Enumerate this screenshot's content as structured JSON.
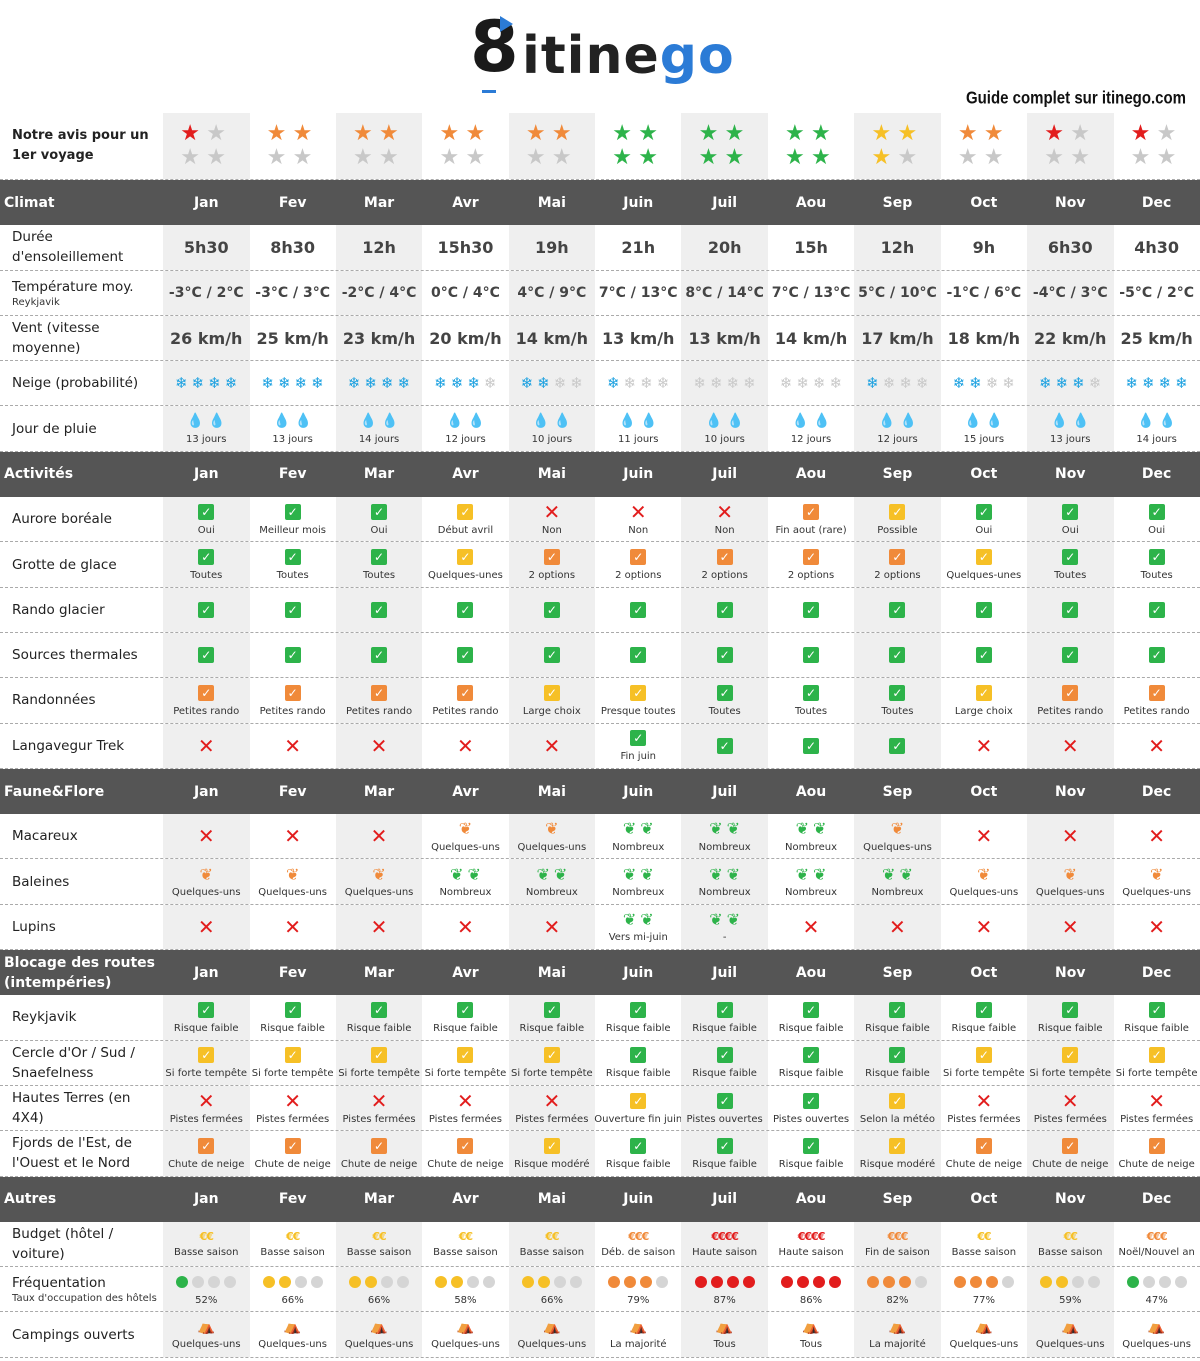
{
  "logo": {
    "prefix": "8",
    "text_a": "itine",
    "text_b": "go"
  },
  "guide": "Guide complet sur itinego.com",
  "months": [
    "Jan",
    "Fev",
    "Mar",
    "Avr",
    "Mai",
    "Juin",
    "Juil",
    "Aou",
    "Sep",
    "Oct",
    "Nov",
    "Dec"
  ],
  "colors": {
    "header": "#555555",
    "alt": "#efefef",
    "red": "#e21d1d",
    "orange": "#f08a3a",
    "yellow": "#f6c026",
    "green": "#2db34a",
    "grey": "#c8c8c8",
    "blue": "#1e8fd8"
  },
  "rating": {
    "label": "Notre avis pour un 1er voyage",
    "color": [
      "red",
      "orange",
      "orange",
      "orange",
      "orange",
      "green",
      "green",
      "green",
      "yellow",
      "orange",
      "red",
      "red"
    ],
    "stars": [
      1,
      2,
      2,
      2,
      2,
      4,
      4,
      4,
      3,
      2,
      1,
      1
    ]
  },
  "sections": [
    {
      "title": "Climat",
      "rows": [
        {
          "label": "Durée d'ensoleillement",
          "kind": "big",
          "cells": [
            "5h30",
            "8h30",
            "12h",
            "15h30",
            "19h",
            "21h",
            "20h",
            "15h",
            "12h",
            "9h",
            "6h30",
            "4h30"
          ]
        },
        {
          "label": "Température moy.",
          "sub": "Reykjavik",
          "kind": "temp",
          "cells": [
            "-3°C / 2°C",
            "-3°C / 3°C",
            "-2°C / 4°C",
            "0°C / 4°C",
            "4°C / 9°C",
            "7°C / 13°C",
            "8°C / 14°C",
            "7°C / 13°C",
            "5°C / 10°C",
            "-1°C / 6°C",
            "-4°C / 3°C",
            "-5°C / 2°C"
          ]
        },
        {
          "label": "Vent (vitesse moyenne)",
          "kind": "big",
          "cells": [
            "26 km/h",
            "25 km/h",
            "23 km/h",
            "20 km/h",
            "14 km/h",
            "13 km/h",
            "13 km/h",
            "14 km/h",
            "17 km/h",
            "18 km/h",
            "22 km/h",
            "25 km/h"
          ]
        },
        {
          "label": "Neige (probabilité)",
          "kind": "snow",
          "cells": [
            4,
            4,
            4,
            3,
            2,
            1,
            0,
            0,
            1,
            2,
            3,
            4
          ]
        },
        {
          "label": "Jour de pluie",
          "kind": "rain",
          "cells": [
            "13 jours",
            "13 jours",
            "14 jours",
            "12 jours",
            "10 jours",
            "11 jours",
            "10 jours",
            "12 jours",
            "12 jours",
            "15 jours",
            "13 jours",
            "14 jours"
          ]
        }
      ]
    },
    {
      "title": "Activités",
      "rows": [
        {
          "label": "Aurore boréale",
          "kind": "status",
          "cells": [
            [
              "g",
              "Oui"
            ],
            [
              "g",
              "Meilleur mois"
            ],
            [
              "g",
              "Oui"
            ],
            [
              "y",
              "Début avril"
            ],
            [
              "x",
              "Non"
            ],
            [
              "x",
              "Non"
            ],
            [
              "x",
              "Non"
            ],
            [
              "o",
              "Fin aout (rare)"
            ],
            [
              "y",
              "Possible"
            ],
            [
              "g",
              "Oui"
            ],
            [
              "g",
              "Oui"
            ],
            [
              "g",
              "Oui"
            ]
          ]
        },
        {
          "label": "Grotte de glace",
          "kind": "status",
          "cells": [
            [
              "g",
              "Toutes"
            ],
            [
              "g",
              "Toutes"
            ],
            [
              "g",
              "Toutes"
            ],
            [
              "y",
              "Quelques-unes"
            ],
            [
              "o",
              "2 options"
            ],
            [
              "o",
              "2 options"
            ],
            [
              "o",
              "2 options"
            ],
            [
              "o",
              "2 options"
            ],
            [
              "o",
              "2 options"
            ],
            [
              "y",
              "Quelques-unes"
            ],
            [
              "g",
              "Toutes"
            ],
            [
              "g",
              "Toutes"
            ]
          ]
        },
        {
          "label": "Rando glacier",
          "kind": "status",
          "cells": [
            [
              "g",
              ""
            ],
            [
              "g",
              ""
            ],
            [
              "g",
              ""
            ],
            [
              "g",
              ""
            ],
            [
              "g",
              ""
            ],
            [
              "g",
              ""
            ],
            [
              "g",
              ""
            ],
            [
              "g",
              ""
            ],
            [
              "g",
              ""
            ],
            [
              "g",
              ""
            ],
            [
              "g",
              ""
            ],
            [
              "g",
              ""
            ]
          ]
        },
        {
          "label": "Sources thermales",
          "kind": "status",
          "cells": [
            [
              "g",
              ""
            ],
            [
              "g",
              ""
            ],
            [
              "g",
              ""
            ],
            [
              "g",
              ""
            ],
            [
              "g",
              ""
            ],
            [
              "g",
              ""
            ],
            [
              "g",
              ""
            ],
            [
              "g",
              ""
            ],
            [
              "g",
              ""
            ],
            [
              "g",
              ""
            ],
            [
              "g",
              ""
            ],
            [
              "g",
              ""
            ]
          ]
        },
        {
          "label": "Randonnées",
          "kind": "status",
          "cells": [
            [
              "o",
              "Petites rando"
            ],
            [
              "o",
              "Petites rando"
            ],
            [
              "o",
              "Petites rando"
            ],
            [
              "o",
              "Petites rando"
            ],
            [
              "y",
              "Large choix"
            ],
            [
              "y",
              "Presque toutes"
            ],
            [
              "g",
              "Toutes"
            ],
            [
              "g",
              "Toutes"
            ],
            [
              "g",
              "Toutes"
            ],
            [
              "y",
              "Large choix"
            ],
            [
              "o",
              "Petites rando"
            ],
            [
              "o",
              "Petites rando"
            ]
          ]
        },
        {
          "label": "Langavegur Trek",
          "kind": "status",
          "cells": [
            [
              "x",
              ""
            ],
            [
              "x",
              ""
            ],
            [
              "x",
              ""
            ],
            [
              "x",
              ""
            ],
            [
              "x",
              ""
            ],
            [
              "g",
              "Fin juin"
            ],
            [
              "g",
              ""
            ],
            [
              "g",
              ""
            ],
            [
              "g",
              ""
            ],
            [
              "x",
              ""
            ],
            [
              "x",
              ""
            ],
            [
              "x",
              ""
            ]
          ]
        }
      ]
    },
    {
      "title": "Faune&Flore",
      "rows": [
        {
          "label": "Macareux",
          "kind": "fauna",
          "cells": [
            [
              "x",
              ""
            ],
            [
              "x",
              ""
            ],
            [
              "x",
              ""
            ],
            [
              "o1",
              "Quelques-uns"
            ],
            [
              "o1",
              "Quelques-uns"
            ],
            [
              "g2",
              "Nombreux"
            ],
            [
              "g2",
              "Nombreux"
            ],
            [
              "g2",
              "Nombreux"
            ],
            [
              "o1",
              "Quelques-uns"
            ],
            [
              "x",
              ""
            ],
            [
              "x",
              ""
            ],
            [
              "x",
              ""
            ]
          ]
        },
        {
          "label": "Baleines",
          "kind": "fauna",
          "cells": [
            [
              "o1",
              "Quelques-uns"
            ],
            [
              "o1",
              "Quelques-uns"
            ],
            [
              "o1",
              "Quelques-uns"
            ],
            [
              "g2",
              "Nombreux"
            ],
            [
              "g2",
              "Nombreux"
            ],
            [
              "g2",
              "Nombreux"
            ],
            [
              "g2",
              "Nombreux"
            ],
            [
              "g2",
              "Nombreux"
            ],
            [
              "g2",
              "Nombreux"
            ],
            [
              "o1",
              "Quelques-uns"
            ],
            [
              "o1",
              "Quelques-uns"
            ],
            [
              "o1",
              "Quelques-uns"
            ]
          ]
        },
        {
          "label": "Lupins",
          "kind": "fauna",
          "cells": [
            [
              "x",
              ""
            ],
            [
              "x",
              ""
            ],
            [
              "x",
              ""
            ],
            [
              "x",
              ""
            ],
            [
              "x",
              ""
            ],
            [
              "g2",
              "Vers mi-juin"
            ],
            [
              "g2",
              "-"
            ],
            [
              "x",
              ""
            ],
            [
              "x",
              ""
            ],
            [
              "x",
              ""
            ],
            [
              "x",
              ""
            ],
            [
              "x",
              ""
            ]
          ]
        }
      ]
    },
    {
      "title": "Blocage des routes (intempéries)",
      "rows": [
        {
          "label": "Reykjavik",
          "kind": "status",
          "cells": [
            [
              "g",
              "Risque faible"
            ],
            [
              "g",
              "Risque faible"
            ],
            [
              "g",
              "Risque faible"
            ],
            [
              "g",
              "Risque faible"
            ],
            [
              "g",
              "Risque faible"
            ],
            [
              "g",
              "Risque faible"
            ],
            [
              "g",
              "Risque faible"
            ],
            [
              "g",
              "Risque faible"
            ],
            [
              "g",
              "Risque faible"
            ],
            [
              "g",
              "Risque faible"
            ],
            [
              "g",
              "Risque faible"
            ],
            [
              "g",
              "Risque faible"
            ]
          ]
        },
        {
          "label": "Cercle d'Or / Sud / Snaefelness",
          "kind": "status",
          "cells": [
            [
              "y",
              "Si forte tempête"
            ],
            [
              "y",
              "Si forte tempête"
            ],
            [
              "y",
              "Si forte tempête"
            ],
            [
              "y",
              "Si forte tempête"
            ],
            [
              "y",
              "Si forte tempête"
            ],
            [
              "g",
              "Risque faible"
            ],
            [
              "g",
              "Risque faible"
            ],
            [
              "g",
              "Risque faible"
            ],
            [
              "g",
              "Risque faible"
            ],
            [
              "y",
              "Si forte tempête"
            ],
            [
              "y",
              "Si forte tempête"
            ],
            [
              "y",
              "Si forte tempête"
            ]
          ]
        },
        {
          "label": "Hautes Terres (en 4X4)",
          "kind": "status",
          "cells": [
            [
              "x",
              "Pistes fermées"
            ],
            [
              "x",
              "Pistes fermées"
            ],
            [
              "x",
              "Pistes fermées"
            ],
            [
              "x",
              "Pistes fermées"
            ],
            [
              "x",
              "Pistes fermées"
            ],
            [
              "y",
              "Ouverture fin juin"
            ],
            [
              "g",
              "Pistes ouvertes"
            ],
            [
              "g",
              "Pistes ouvertes"
            ],
            [
              "y",
              "Selon la météo"
            ],
            [
              "x",
              "Pistes fermées"
            ],
            [
              "x",
              "Pistes fermées"
            ],
            [
              "x",
              "Pistes fermées"
            ]
          ]
        },
        {
          "label": "Fjords de l'Est, de l'Ouest et le Nord",
          "kind": "status",
          "cells": [
            [
              "o",
              "Chute de neige"
            ],
            [
              "o",
              "Chute de neige"
            ],
            [
              "o",
              "Chute de neige"
            ],
            [
              "o",
              "Chute de neige"
            ],
            [
              "y",
              "Risque modéré"
            ],
            [
              "g",
              "Risque faible"
            ],
            [
              "g",
              "Risque faible"
            ],
            [
              "g",
              "Risque faible"
            ],
            [
              "y",
              "Risque modéré"
            ],
            [
              "o",
              "Chute de neige"
            ],
            [
              "o",
              "Chute de neige"
            ],
            [
              "o",
              "Chute de neige"
            ]
          ]
        }
      ]
    },
    {
      "title": "Autres",
      "rows": [
        {
          "label": "Budget (hôtel / voiture)",
          "kind": "budget",
          "cells": [
            [
              "y",
              "€€",
              "Basse saison"
            ],
            [
              "y",
              "€€",
              "Basse saison"
            ],
            [
              "y",
              "€€",
              "Basse saison"
            ],
            [
              "y",
              "€€",
              "Basse saison"
            ],
            [
              "y",
              "€€",
              "Basse saison"
            ],
            [
              "o",
              "€€€",
              "Déb. de saison"
            ],
            [
              "r",
              "€€€€",
              "Haute saison"
            ],
            [
              "r",
              "€€€€",
              "Haute saison"
            ],
            [
              "o",
              "€€€",
              "Fin de saison"
            ],
            [
              "y",
              "€€",
              "Basse saison"
            ],
            [
              "y",
              "€€",
              "Basse saison"
            ],
            [
              "o",
              "€€€",
              "Noël/Nouvel an"
            ]
          ]
        },
        {
          "label": "Fréquentation",
          "sub": "Taux d'occupation des hôtels",
          "kind": "freq",
          "cells": [
            [
              "g",
              1,
              "52%"
            ],
            [
              "y",
              2,
              "66%"
            ],
            [
              "y",
              2,
              "66%"
            ],
            [
              "y",
              2,
              "58%"
            ],
            [
              "y",
              2,
              "66%"
            ],
            [
              "o",
              3,
              "79%"
            ],
            [
              "r",
              4,
              "87%"
            ],
            [
              "r",
              4,
              "86%"
            ],
            [
              "o",
              3,
              "82%"
            ],
            [
              "o",
              3,
              "77%"
            ],
            [
              "y",
              2,
              "59%"
            ],
            [
              "g",
              1,
              "47%"
            ]
          ]
        },
        {
          "label": "Campings ouverts",
          "kind": "camp",
          "cells": [
            [
              "o",
              "Quelques-uns"
            ],
            [
              "o",
              "Quelques-uns"
            ],
            [
              "o",
              "Quelques-uns"
            ],
            [
              "o",
              "Quelques-uns"
            ],
            [
              "o",
              "Quelques-uns"
            ],
            [
              "y",
              "La majorité"
            ],
            [
              "g",
              "Tous"
            ],
            [
              "g",
              "Tous"
            ],
            [
              "y",
              "La majorité"
            ],
            [
              "o",
              "Quelques-uns"
            ],
            [
              "o",
              "Quelques-uns"
            ],
            [
              "o",
              "Quelques-uns"
            ]
          ]
        }
      ]
    }
  ]
}
